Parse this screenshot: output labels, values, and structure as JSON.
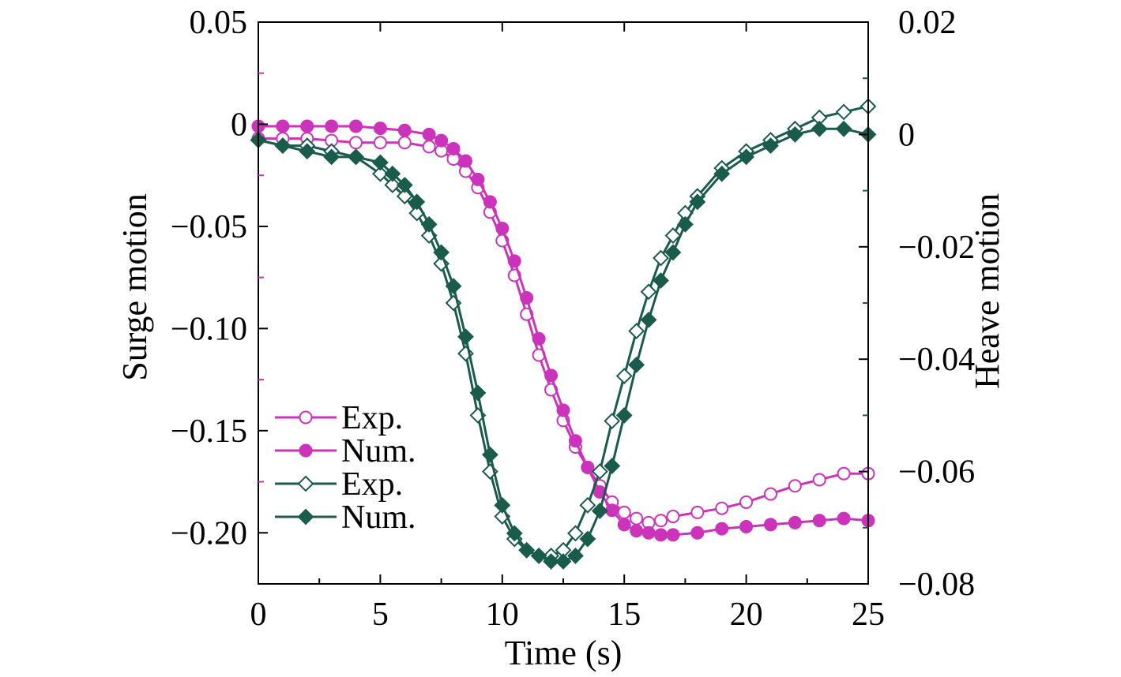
{
  "chart_data": {
    "type": "line",
    "title": "",
    "xlabel": "Time (s)",
    "ylabel_left": "Surge motion",
    "ylabel_right": "Heave motion",
    "xlim": [
      0,
      25
    ],
    "ylim_left": [
      -0.225,
      0.05
    ],
    "ylim_right": [
      -0.08,
      0.02
    ],
    "x_ticks": [
      0,
      5,
      10,
      15,
      20,
      25
    ],
    "x_tick_labels": [
      "0",
      "5",
      "10",
      "15",
      "20",
      "25"
    ],
    "y_left_ticks": [
      0.05,
      0,
      -0.05,
      -0.1,
      -0.15,
      -0.2
    ],
    "y_left_tick_labels": [
      "0.05",
      "0",
      "−0.05",
      "−0.10",
      "−0.15",
      "−0.20"
    ],
    "y_right_ticks": [
      0.02,
      0,
      -0.02,
      -0.04,
      -0.06,
      -0.08
    ],
    "y_right_tick_labels": [
      "0.02",
      "0",
      "−0.02",
      "−0.04",
      "−0.06",
      "−0.08"
    ],
    "grid": false,
    "legend_position": "bottom-left",
    "colors": {
      "surge": "#cc33bb",
      "heave": "#1a5c4c"
    },
    "series": [
      {
        "name": "Exp.",
        "axis": "left",
        "color": "#cc33bb",
        "marker": "circle-open",
        "x": [
          0,
          1,
          2,
          3,
          4,
          5,
          6,
          7,
          7.5,
          8,
          8.5,
          9,
          9.5,
          10,
          10.5,
          11,
          11.5,
          12,
          12.5,
          13,
          13.5,
          14,
          14.5,
          15,
          15.5,
          16,
          16.5,
          17,
          18,
          19,
          20,
          21,
          22,
          23,
          24,
          25
        ],
        "y": [
          -0.007,
          -0.007,
          -0.007,
          -0.008,
          -0.009,
          -0.009,
          -0.009,
          -0.011,
          -0.013,
          -0.017,
          -0.023,
          -0.031,
          -0.043,
          -0.057,
          -0.074,
          -0.093,
          -0.113,
          -0.13,
          -0.145,
          -0.158,
          -0.168,
          -0.177,
          -0.185,
          -0.19,
          -0.193,
          -0.195,
          -0.194,
          -0.192,
          -0.19,
          -0.188,
          -0.185,
          -0.181,
          -0.177,
          -0.174,
          -0.171,
          -0.171
        ]
      },
      {
        "name": "Num.",
        "axis": "left",
        "color": "#cc33bb",
        "marker": "circle-filled",
        "x": [
          0,
          1,
          2,
          3,
          4,
          5,
          6,
          7,
          7.5,
          8,
          8.5,
          9,
          9.5,
          10,
          10.5,
          11,
          11.5,
          12,
          12.5,
          13,
          13.5,
          14,
          14.5,
          15,
          15.5,
          16,
          16.5,
          17,
          18,
          19,
          20,
          21,
          22,
          23,
          24,
          25
        ],
        "y": [
          -0.001,
          -0.001,
          -0.001,
          -0.001,
          -0.001,
          -0.002,
          -0.003,
          -0.005,
          -0.008,
          -0.012,
          -0.018,
          -0.027,
          -0.038,
          -0.051,
          -0.067,
          -0.085,
          -0.105,
          -0.123,
          -0.14,
          -0.155,
          -0.168,
          -0.18,
          -0.189,
          -0.196,
          -0.199,
          -0.2,
          -0.201,
          -0.201,
          -0.2,
          -0.198,
          -0.197,
          -0.196,
          -0.195,
          -0.194,
          -0.193,
          -0.194
        ]
      },
      {
        "name": "Exp.",
        "axis": "right",
        "color": "#1a5c4c",
        "marker": "diamond-open",
        "x": [
          0,
          1,
          2,
          3,
          4,
          5,
          5.5,
          6,
          6.5,
          7,
          7.5,
          8,
          8.5,
          9,
          9.5,
          10,
          10.5,
          11,
          11.5,
          12,
          12.5,
          13,
          13.5,
          14,
          14.5,
          15,
          15.5,
          16,
          16.5,
          17,
          17.5,
          18,
          19,
          20,
          21,
          22,
          23,
          24,
          25
        ],
        "y": [
          -0.001,
          -0.002,
          -0.002,
          -0.003,
          -0.004,
          -0.007,
          -0.009,
          -0.011,
          -0.014,
          -0.018,
          -0.023,
          -0.03,
          -0.039,
          -0.05,
          -0.06,
          -0.068,
          -0.072,
          -0.074,
          -0.075,
          -0.075,
          -0.074,
          -0.071,
          -0.066,
          -0.06,
          -0.051,
          -0.043,
          -0.035,
          -0.028,
          -0.022,
          -0.018,
          -0.014,
          -0.011,
          -0.006,
          -0.003,
          -0.001,
          0.001,
          0.003,
          0.004,
          0.005
        ]
      },
      {
        "name": "Num.",
        "axis": "right",
        "color": "#1a5c4c",
        "marker": "diamond-filled",
        "x": [
          0,
          1,
          2,
          3,
          4,
          5,
          5.5,
          6,
          6.5,
          7,
          7.5,
          8,
          8.5,
          9,
          9.5,
          10,
          10.5,
          11,
          11.5,
          12,
          12.5,
          13,
          13.5,
          14,
          14.5,
          15,
          15.5,
          16,
          16.5,
          17,
          17.5,
          18,
          19,
          20,
          21,
          22,
          23,
          24,
          25
        ],
        "y": [
          -0.001,
          -0.002,
          -0.003,
          -0.004,
          -0.004,
          -0.005,
          -0.007,
          -0.009,
          -0.012,
          -0.016,
          -0.021,
          -0.027,
          -0.036,
          -0.046,
          -0.057,
          -0.066,
          -0.071,
          -0.074,
          -0.075,
          -0.076,
          -0.076,
          -0.075,
          -0.072,
          -0.067,
          -0.059,
          -0.05,
          -0.041,
          -0.033,
          -0.026,
          -0.021,
          -0.016,
          -0.012,
          -0.007,
          -0.004,
          -0.002,
          0,
          0.001,
          0.001,
          0
        ]
      }
    ]
  }
}
